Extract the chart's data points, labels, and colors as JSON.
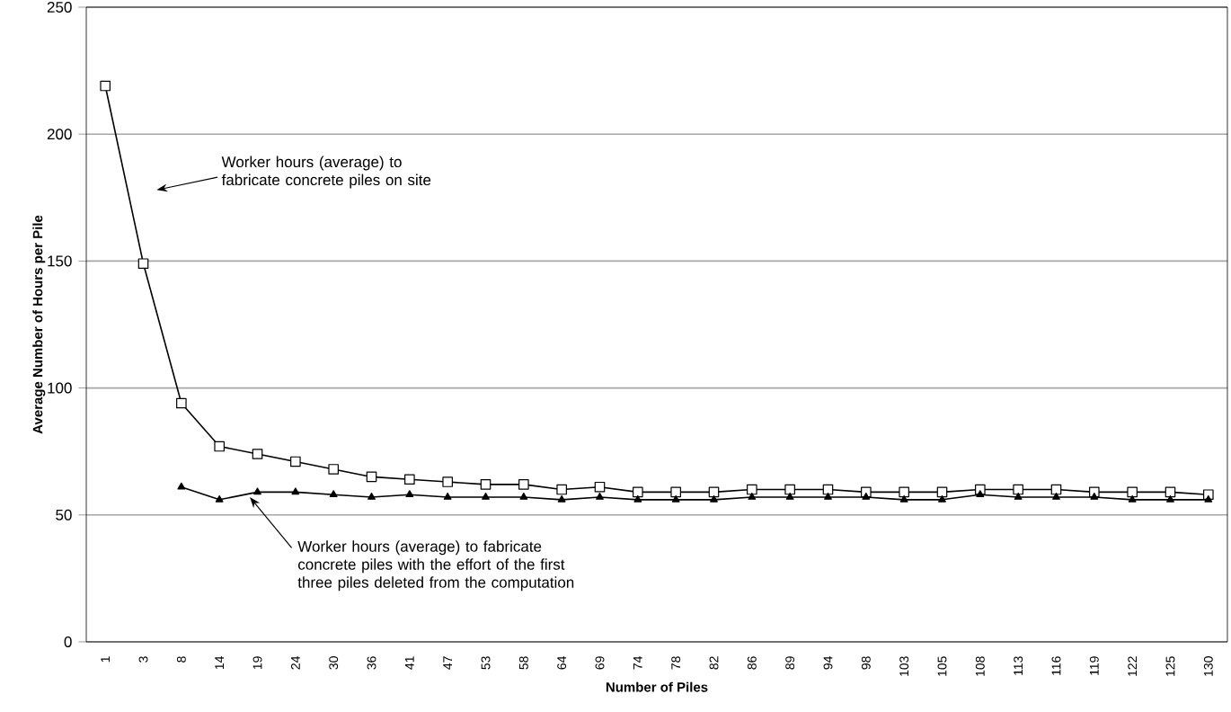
{
  "chart_data": {
    "type": "line",
    "xlabel": "Number of Piles",
    "ylabel": "Average Number of Hours per Pile",
    "categories": [
      "1",
      "3",
      "8",
      "14",
      "19",
      "24",
      "30",
      "36",
      "41",
      "47",
      "53",
      "58",
      "64",
      "69",
      "74",
      "78",
      "82",
      "86",
      "89",
      "94",
      "98",
      "103",
      "105",
      "108",
      "113",
      "116",
      "119",
      "122",
      "125",
      "130"
    ],
    "series": [
      {
        "color": "#000000",
        "marker": "square",
        "values": [
          219,
          149,
          94,
          77,
          74,
          71,
          68,
          65,
          64,
          63,
          62,
          62,
          60,
          61,
          59,
          59,
          59,
          60,
          60,
          60,
          59,
          59,
          59,
          60,
          60,
          60,
          59,
          59,
          59,
          58
        ]
      },
      {
        "color": "#000000",
        "marker": "triangle",
        "values": [
          null,
          null,
          61,
          56,
          59,
          59,
          58,
          57,
          58,
          57,
          57,
          57,
          56,
          57,
          56,
          56,
          56,
          57,
          57,
          57,
          57,
          56,
          56,
          58,
          57,
          57,
          57,
          56,
          56,
          56
        ]
      }
    ],
    "ylim": [
      0,
      250
    ],
    "yticks": [
      0,
      50,
      100,
      150,
      200,
      250
    ],
    "grid": "y",
    "annotations": [
      "Worker hours (average) to fabricate concrete piles on site",
      {
        "text": "Worker hours (average) to fabricate concrete piles with the effort of the first three piles deleted from the computation",
        "y": 57
      }
    ]
  }
}
